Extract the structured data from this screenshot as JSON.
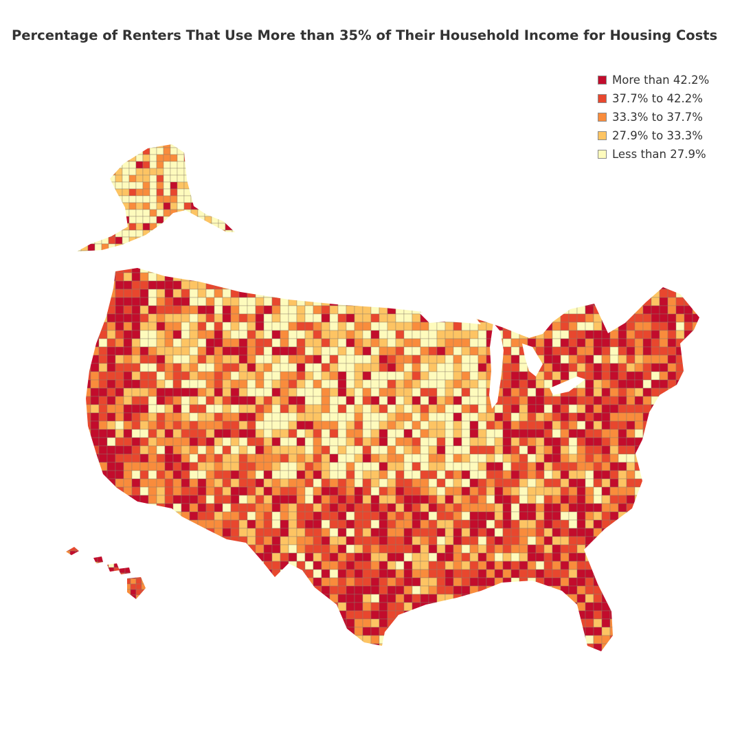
{
  "title": "Percentage of Renters That Use More than 35% of Their Household Income for Housing Costs",
  "legend": [
    {
      "label": "More than 42.2%",
      "color": "#c20c2c"
    },
    {
      "label": "37.7% to 42.2%",
      "color": "#e8472e"
    },
    {
      "label": "33.3% to 37.7%",
      "color": "#f98c3c"
    },
    {
      "label": "27.9% to 33.3%",
      "color": "#fdc463"
    },
    {
      "label": "Less than 27.9%",
      "color": "#fefbbd"
    }
  ],
  "county_border_color": "#8c7d6a"
}
